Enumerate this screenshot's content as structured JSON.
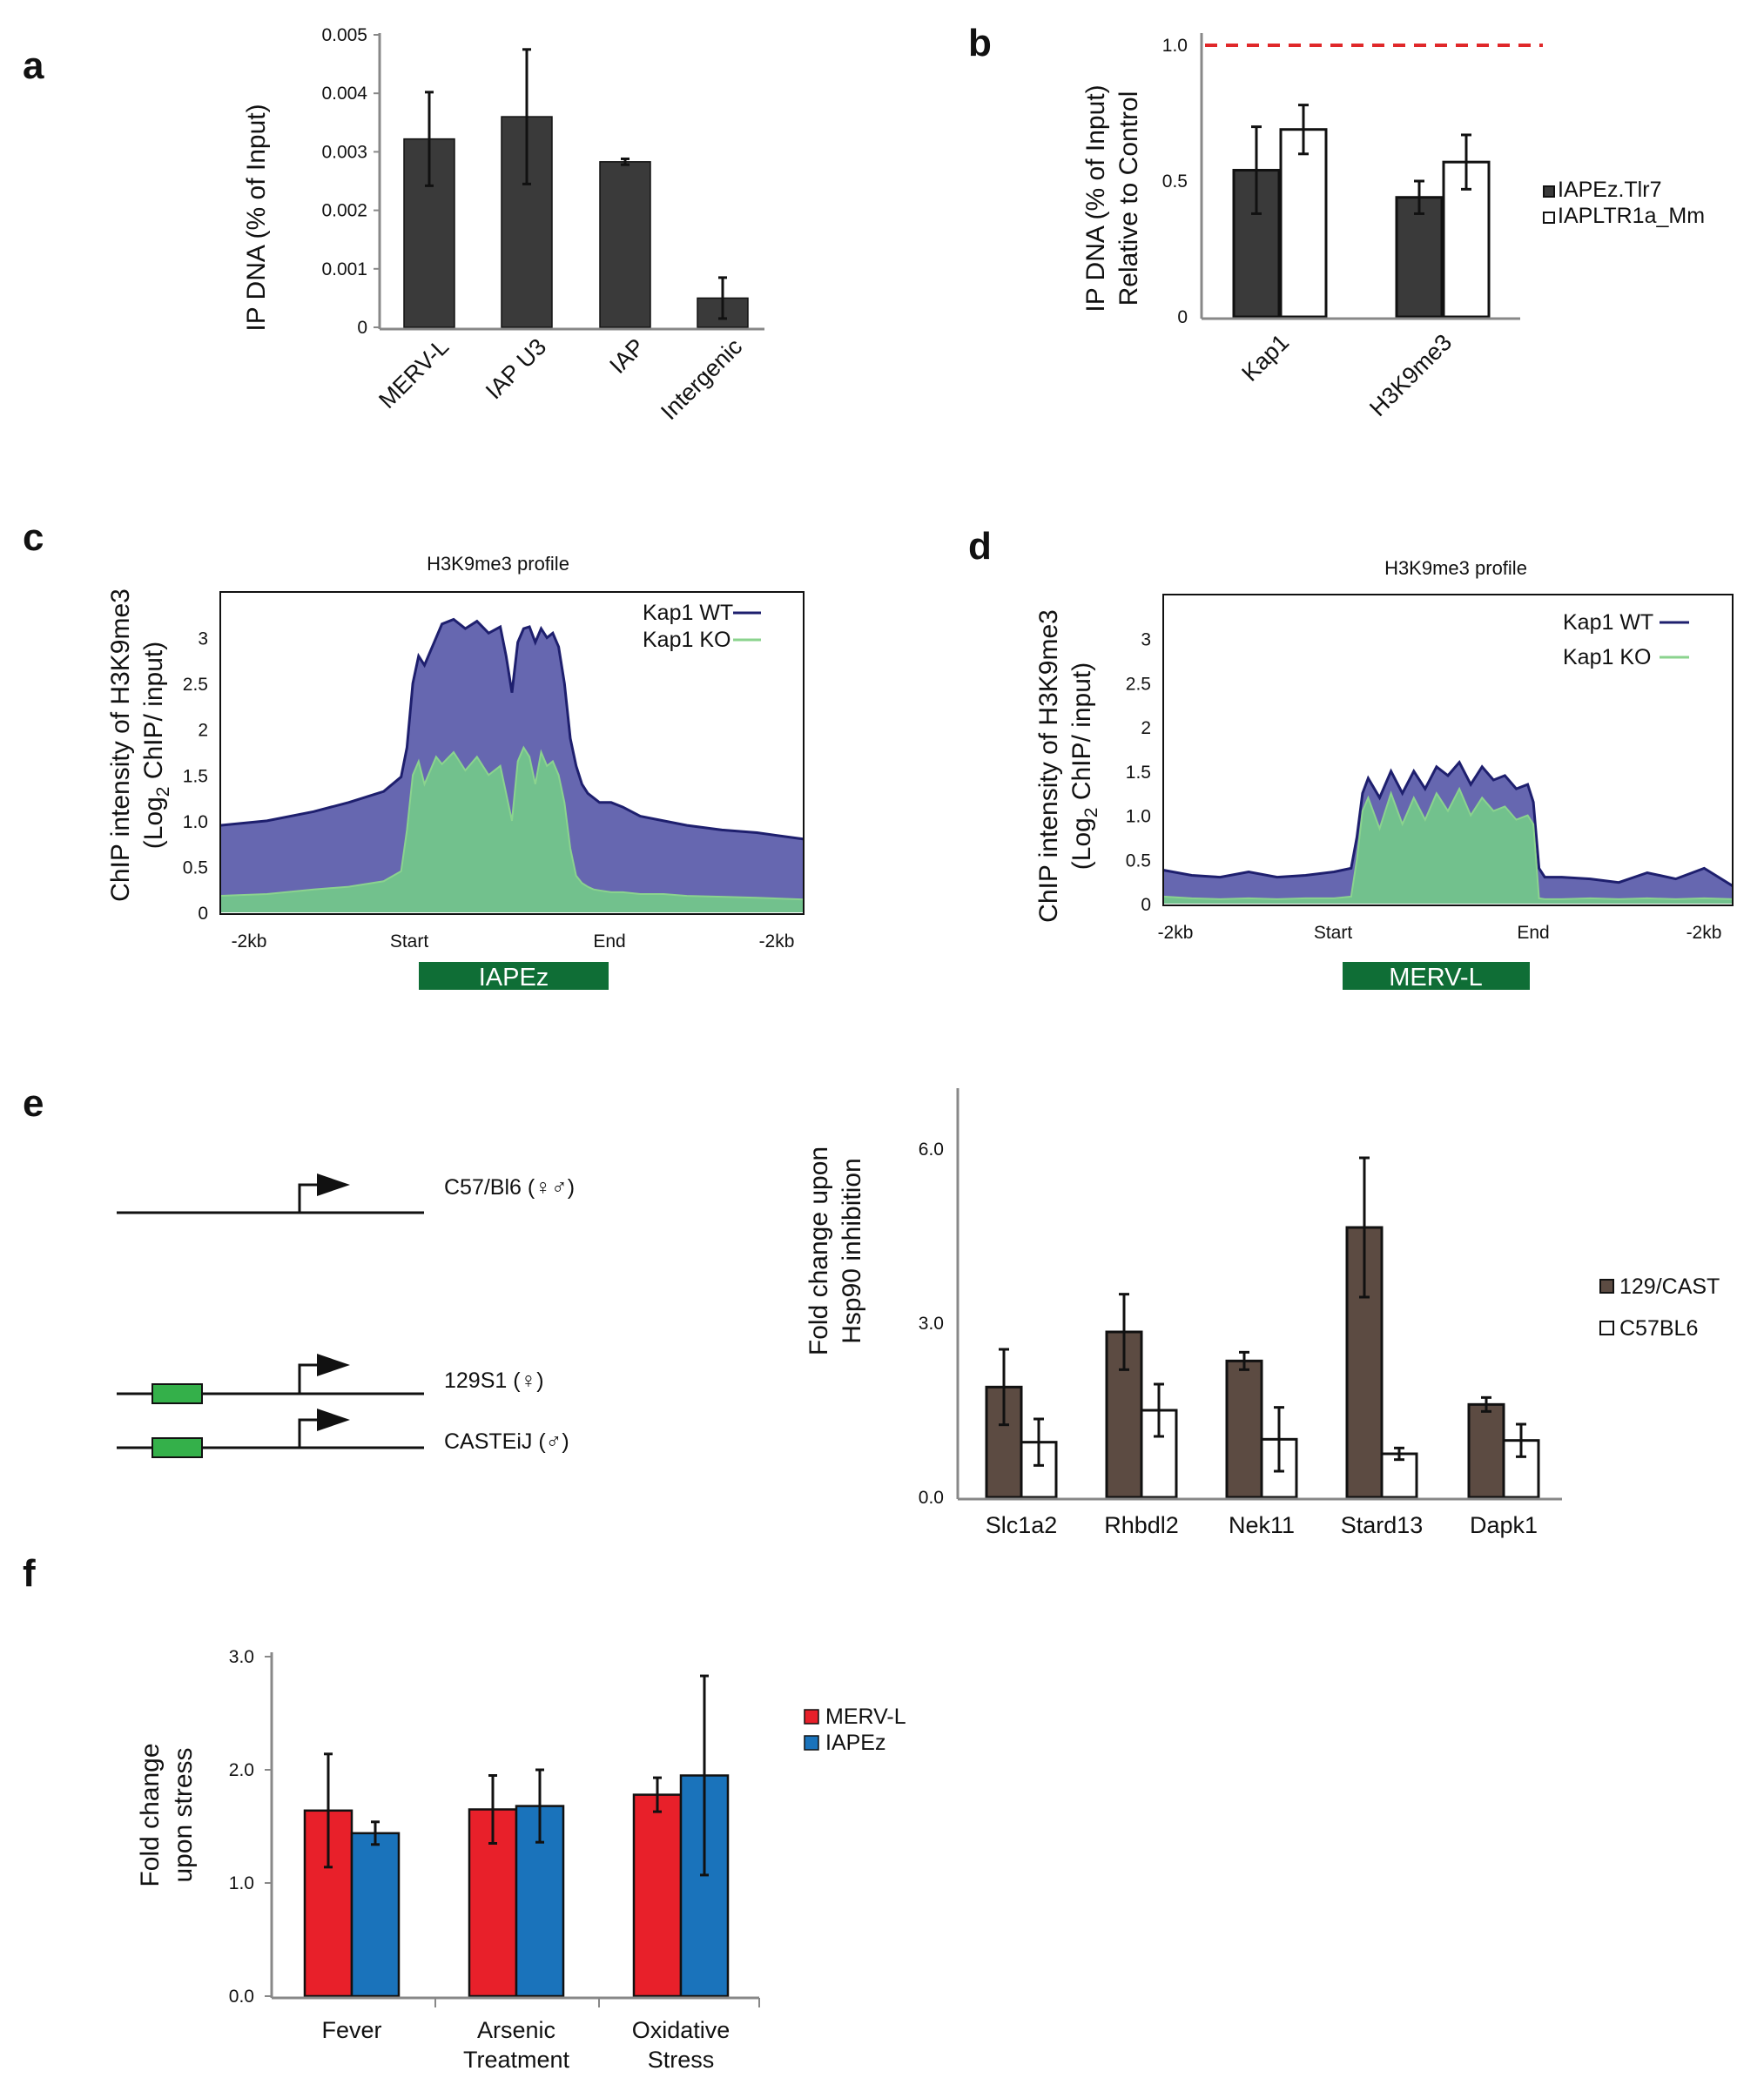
{
  "panels": {
    "a": "a",
    "b": "b",
    "c": "c",
    "d": "d",
    "e": "e",
    "f": "f"
  },
  "colors": {
    "dark_bar": "#3a3a3a",
    "brown_bar": "#5c4b42",
    "red_bar": "#e8202a",
    "blue_bar": "#1a73bb",
    "wt_fill": "#6667b0",
    "wt_line": "#1e1f6e",
    "ko_fill": "#72c18d",
    "ko_line": "#8bd38e",
    "element_box": "#0f6e36",
    "dashed_ref": "#e0282a"
  },
  "chart_data": [
    {
      "id": "a",
      "type": "bar",
      "ylabel": "IP DNA (% of Input)",
      "categories": [
        "MERV-L",
        "IAP U3",
        "IAP",
        "Intergenic"
      ],
      "values": [
        0.00322,
        0.0036,
        0.00283,
        0.0005
      ],
      "errors": [
        0.0008,
        0.00115,
        5e-05,
        0.00035
      ],
      "ylim": [
        0,
        0.005
      ],
      "ytick_labels": [
        "0",
        "0.001",
        "0.002",
        "0.003",
        "0.004",
        "0.005"
      ]
    },
    {
      "id": "b",
      "type": "bar",
      "ylabel_lines": [
        "IP DNA (% of Input)",
        "Relative to Control"
      ],
      "categories": [
        "Kap1",
        "H3K9me3"
      ],
      "series": [
        {
          "name": "IAPEz.Tlr7",
          "values": [
            0.54,
            0.44
          ],
          "errors": [
            0.16,
            0.06
          ]
        },
        {
          "name": "IAPLTR1a_Mm",
          "values": [
            0.69,
            0.57
          ],
          "errors": [
            0.09,
            0.1
          ]
        }
      ],
      "reference_line": 1.0,
      "ylim": [
        0,
        1.0
      ],
      "ytick_labels": [
        "0",
        "0.5",
        "1.0"
      ]
    },
    {
      "id": "c",
      "type": "area",
      "title": "H3K9me3 profile",
      "ylabel_line1": "ChIP intensity of H3K9me3",
      "ylabel_line2_pre": "(Log",
      "ylabel_sub": "2",
      "ylabel_line2_post": " ChIP/ input)",
      "ylim": [
        0,
        3.5
      ],
      "ytick_labels": [
        "0",
        "0.5",
        "1.0",
        "1.5",
        "2",
        "2.5",
        "3"
      ],
      "xtick_labels": [
        "-2kb",
        "Start",
        "End",
        "-2kb"
      ],
      "element_label": "IAPEz",
      "series": [
        {
          "name": "Kap1 WT",
          "x": [
            0,
            8,
            16,
            22,
            28,
            31,
            32,
            33,
            34,
            35,
            37,
            38,
            40,
            42,
            44,
            46,
            48,
            49,
            50,
            51,
            52,
            53,
            54,
            55,
            56,
            57,
            58,
            59,
            60,
            61,
            62,
            63,
            64,
            65,
            67,
            69,
            72,
            76,
            80,
            86,
            92,
            100
          ],
          "values": [
            0.95,
            1.0,
            1.1,
            1.2,
            1.32,
            1.48,
            1.8,
            2.5,
            2.8,
            2.7,
            3.0,
            3.15,
            3.2,
            3.1,
            3.18,
            3.05,
            3.12,
            2.8,
            2.4,
            2.95,
            3.1,
            3.12,
            2.95,
            3.1,
            3.0,
            3.05,
            2.9,
            2.5,
            1.9,
            1.6,
            1.4,
            1.3,
            1.25,
            1.2,
            1.2,
            1.15,
            1.05,
            1.0,
            0.95,
            0.9,
            0.87,
            0.8
          ]
        },
        {
          "name": "Kap1 KO",
          "x": [
            0,
            8,
            16,
            22,
            28,
            31,
            32,
            33,
            34,
            35,
            37,
            38,
            40,
            42,
            44,
            46,
            48,
            49,
            50,
            51,
            52,
            53,
            54,
            55,
            56,
            57,
            58,
            59,
            60,
            61,
            62,
            63,
            64,
            65,
            67,
            69,
            72,
            76,
            80,
            86,
            92,
            100
          ],
          "values": [
            0.18,
            0.2,
            0.25,
            0.28,
            0.34,
            0.45,
            0.9,
            1.5,
            1.65,
            1.4,
            1.7,
            1.62,
            1.75,
            1.55,
            1.7,
            1.5,
            1.6,
            1.3,
            1.0,
            1.65,
            1.8,
            1.7,
            1.4,
            1.75,
            1.6,
            1.65,
            1.5,
            1.2,
            0.7,
            0.4,
            0.32,
            0.28,
            0.25,
            0.24,
            0.22,
            0.22,
            0.2,
            0.2,
            0.18,
            0.17,
            0.16,
            0.14
          ]
        }
      ]
    },
    {
      "id": "d",
      "type": "area",
      "title": "H3K9me3 profile",
      "ylabel_line1": "ChIP intensity of H3K9me3",
      "ylabel_line2_pre": "(Log",
      "ylabel_sub": "2",
      "ylabel_line2_post": " ChIP/ input)",
      "ylim": [
        0,
        3.5
      ],
      "ytick_labels": [
        "0",
        "0.5",
        "1.0",
        "1.5",
        "2",
        "2.5",
        "3"
      ],
      "xtick_labels": [
        "-2kb",
        "Start",
        "End",
        "-2kb"
      ],
      "element_label": "MERV-L",
      "series": [
        {
          "name": "Kap1 WT",
          "x": [
            0,
            5,
            10,
            15,
            20,
            25,
            30,
            33,
            34,
            35,
            36,
            38,
            40,
            42,
            44,
            46,
            48,
            50,
            52,
            54,
            56,
            58,
            60,
            62,
            64,
            65,
            66,
            67,
            70,
            75,
            80,
            85,
            90,
            95,
            100
          ],
          "values": [
            0.38,
            0.32,
            0.3,
            0.36,
            0.3,
            0.32,
            0.36,
            0.4,
            0.75,
            1.25,
            1.42,
            1.2,
            1.5,
            1.25,
            1.5,
            1.3,
            1.55,
            1.45,
            1.6,
            1.35,
            1.55,
            1.4,
            1.45,
            1.3,
            1.35,
            1.15,
            0.4,
            0.3,
            0.3,
            0.28,
            0.24,
            0.35,
            0.28,
            0.4,
            0.2
          ]
        },
        {
          "name": "Kap1 KO",
          "x": [
            0,
            5,
            10,
            15,
            20,
            25,
            30,
            33,
            34,
            35,
            36,
            38,
            40,
            42,
            44,
            46,
            48,
            50,
            52,
            54,
            56,
            58,
            60,
            62,
            64,
            65,
            66,
            67,
            70,
            75,
            80,
            85,
            90,
            95,
            100
          ],
          "values": [
            0.08,
            0.06,
            0.05,
            0.06,
            0.05,
            0.06,
            0.06,
            0.08,
            0.5,
            1.05,
            1.2,
            0.85,
            1.25,
            0.9,
            1.2,
            0.95,
            1.25,
            1.05,
            1.3,
            1.0,
            1.2,
            1.05,
            1.1,
            0.95,
            1.0,
            0.9,
            0.06,
            0.05,
            0.05,
            0.06,
            0.05,
            0.06,
            0.05,
            0.06,
            0.05
          ]
        }
      ]
    },
    {
      "id": "e",
      "type": "bar",
      "ylabel_lines": [
        "Fold change upon",
        "Hsp90 inhibition"
      ],
      "categories": [
        "Slc1a2",
        "Rhbdl2",
        "Nek11",
        "Stard13",
        "Dapk1"
      ],
      "series": [
        {
          "name": "129/CAST",
          "values": [
            1.9,
            2.85,
            2.35,
            4.65,
            1.6
          ],
          "errors": [
            0.65,
            0.65,
            0.15,
            1.2,
            0.12
          ]
        },
        {
          "name": "C57BL6",
          "values": [
            0.95,
            1.5,
            1.0,
            0.75,
            0.98
          ],
          "errors": [
            0.4,
            0.45,
            0.55,
            0.1,
            0.28
          ]
        }
      ],
      "ylim": [
        0,
        6.9
      ],
      "ytick_labels": [
        "0.0",
        "3.0",
        "6.0"
      ]
    },
    {
      "id": "f",
      "type": "bar",
      "ylabel_lines": [
        "Fold change",
        "upon stress"
      ],
      "categories": [
        [
          "Fever"
        ],
        [
          "Arsenic",
          "Treatment"
        ],
        [
          "Oxidative",
          "Stress"
        ]
      ],
      "series": [
        {
          "name": "MERV-L",
          "values": [
            1.64,
            1.65,
            1.78
          ],
          "errors": [
            0.5,
            0.3,
            0.15
          ]
        },
        {
          "name": "IAPEz",
          "values": [
            1.44,
            1.68,
            1.95
          ],
          "errors": [
            0.1,
            0.32,
            0.88
          ]
        }
      ],
      "ylim": [
        0,
        3.0
      ],
      "ytick_labels": [
        "0.0",
        "1.0",
        "2.0",
        "3.0"
      ]
    }
  ],
  "schematic": {
    "alleles": [
      "C57/Bl6 (♀♂)",
      "129S1 (♀)",
      "CASTEiJ (♂)"
    ]
  }
}
